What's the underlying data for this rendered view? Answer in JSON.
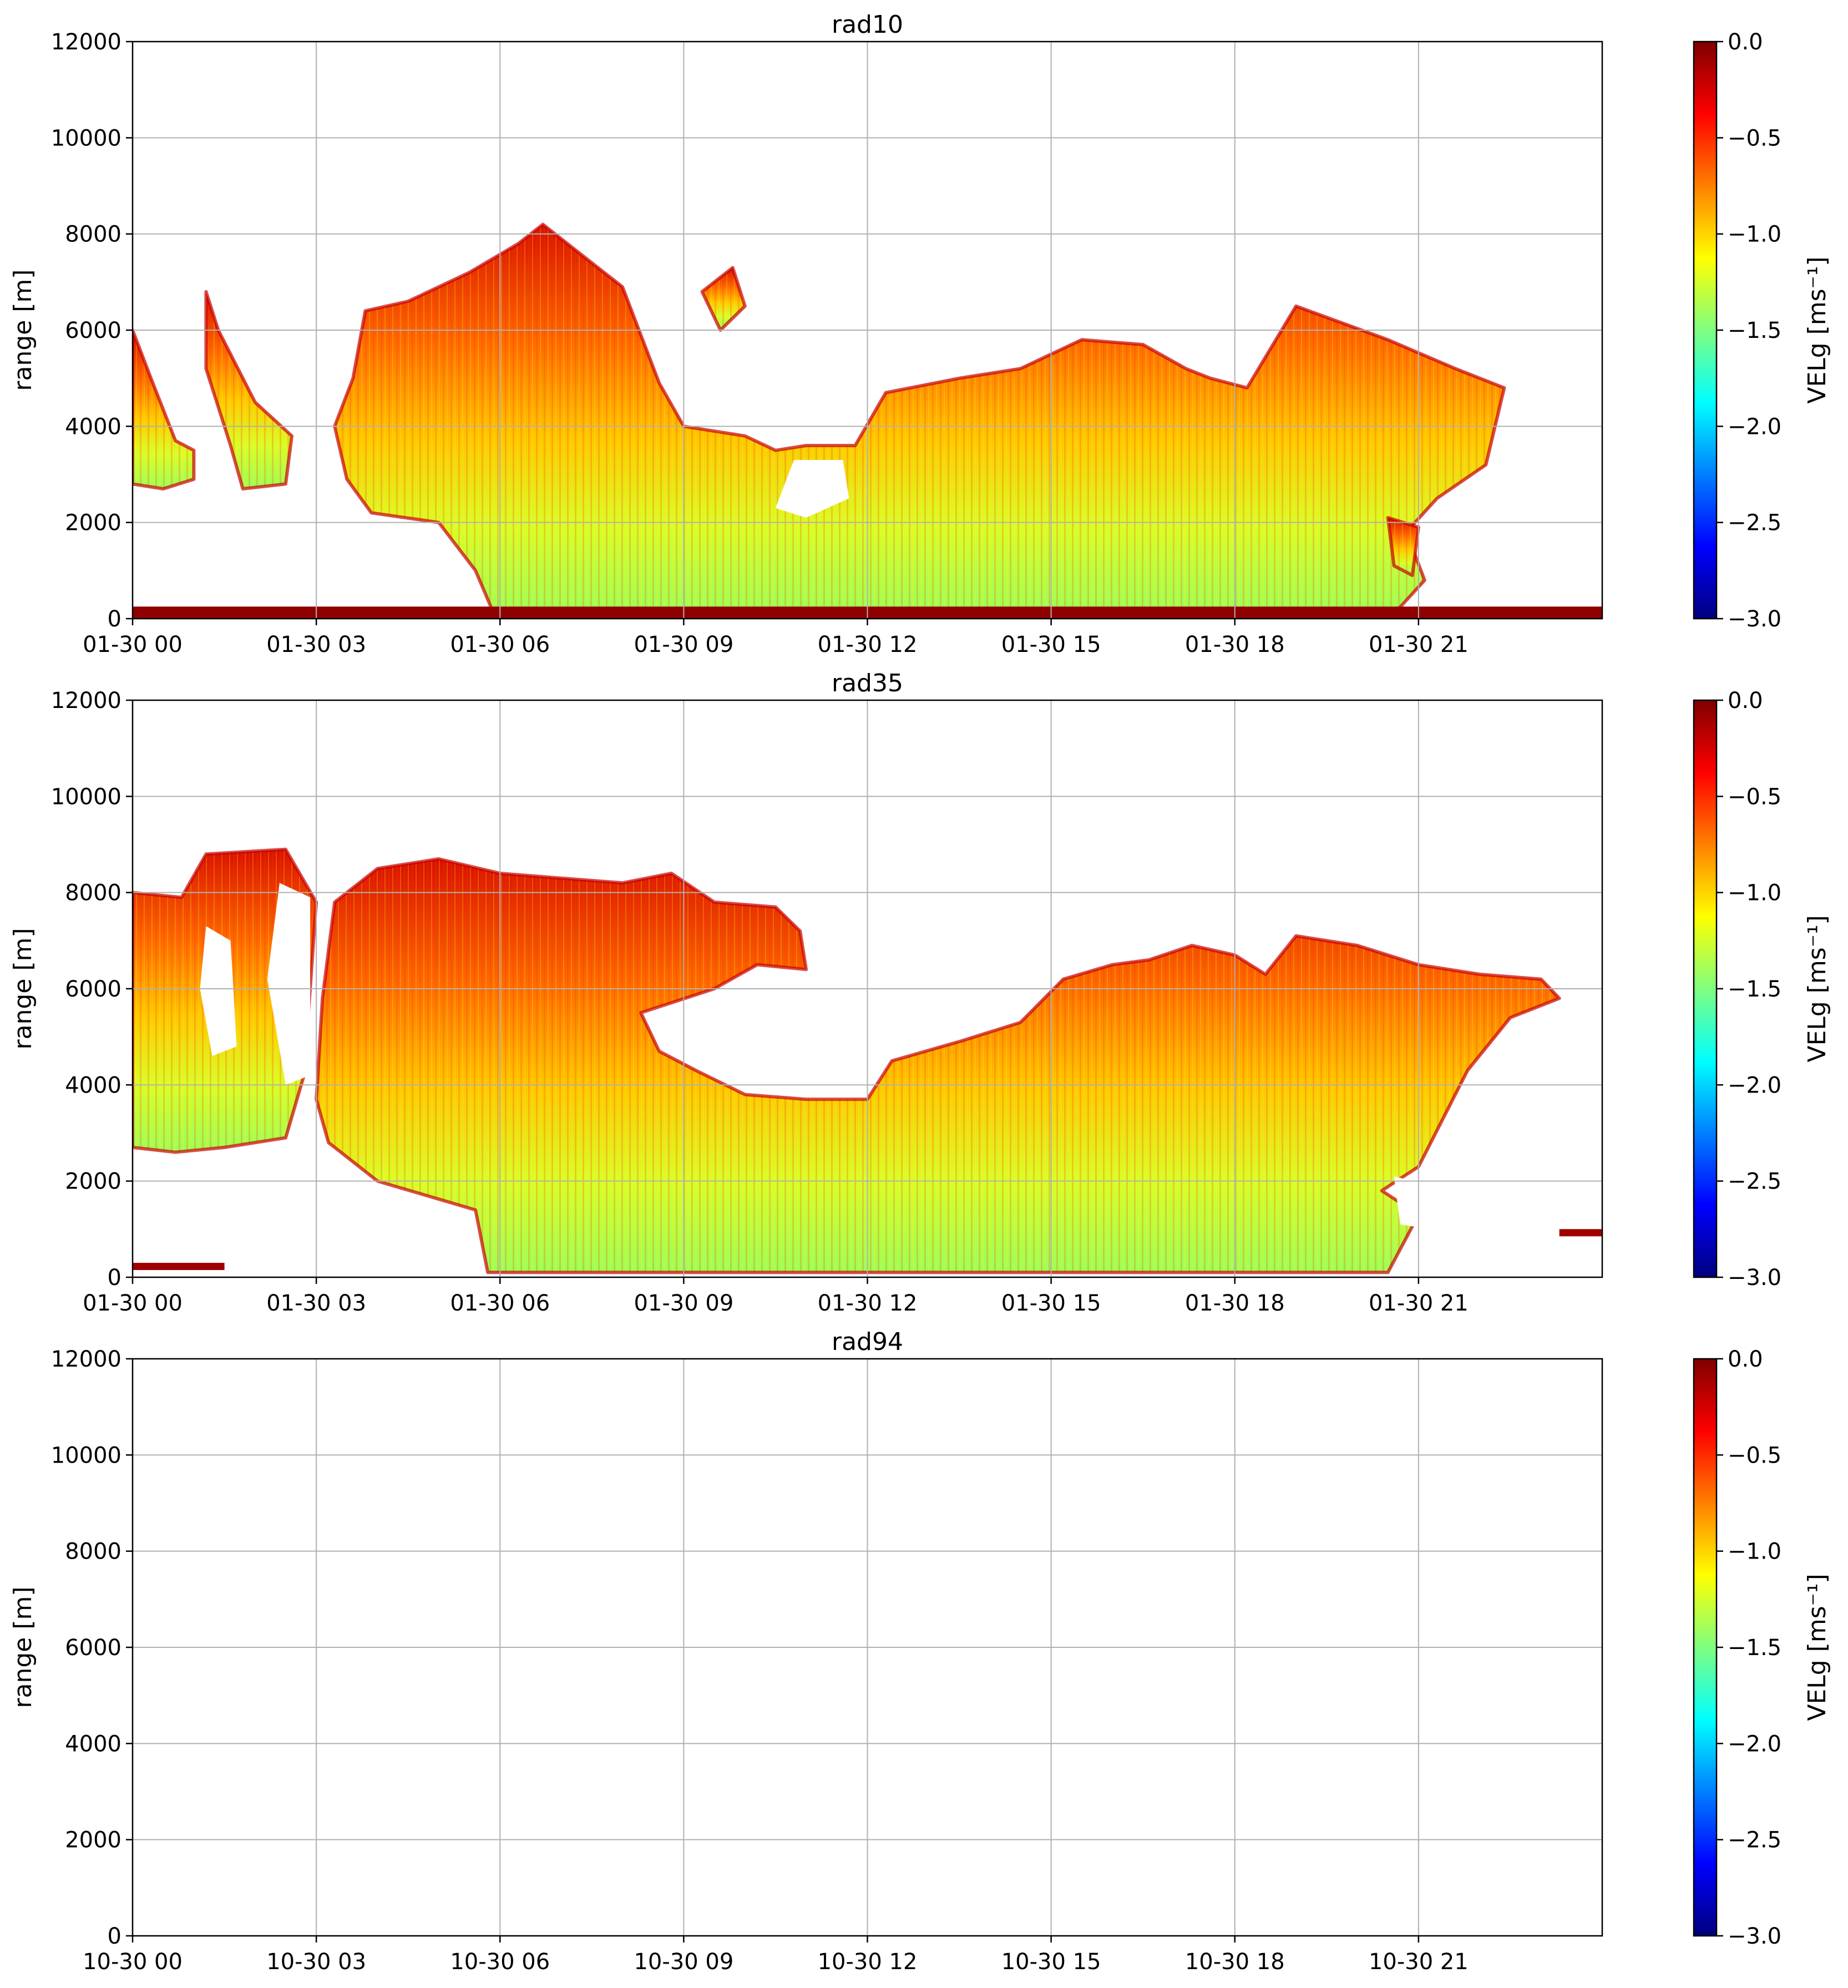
{
  "chart_data": [
    {
      "type": "heatmap",
      "title": "rad10",
      "xlabel": "",
      "ylabel": "range [m]",
      "ylim": [
        0,
        12000
      ],
      "yticks": [
        0,
        2000,
        4000,
        6000,
        8000,
        10000,
        12000
      ],
      "xlim_hours": [
        0,
        24
      ],
      "xticks": [
        {
          "hour": 0,
          "label": "01-30 00"
        },
        {
          "hour": 3,
          "label": "01-30 03"
        },
        {
          "hour": 6,
          "label": "01-30 06"
        },
        {
          "hour": 9,
          "label": "01-30 09"
        },
        {
          "hour": 12,
          "label": "01-30 12"
        },
        {
          "hour": 15,
          "label": "01-30 15"
        },
        {
          "hour": 18,
          "label": "01-30 18"
        },
        {
          "hour": 21,
          "label": "01-30 21"
        }
      ],
      "grid": true,
      "colorbar": {
        "label": "VELg [ms⁻¹]",
        "min": -3.0,
        "max": 0.0,
        "ticks": [
          "0.0",
          "−0.5",
          "−1.0",
          "−1.5",
          "−2.0",
          "−2.5",
          "−3.0"
        ],
        "colormap": "jet"
      },
      "echo_regions": [
        {
          "name": "main-cloud",
          "poly": [
            [
              3.6,
              5000
            ],
            [
              3.8,
              6400
            ],
            [
              4.5,
              6600
            ],
            [
              5.5,
              7200
            ],
            [
              6.3,
              7800
            ],
            [
              6.7,
              8200
            ],
            [
              7.5,
              7400
            ],
            [
              8.0,
              6900
            ],
            [
              8.6,
              4900
            ],
            [
              9.0,
              4000
            ],
            [
              10.0,
              3800
            ],
            [
              10.5,
              3500
            ],
            [
              11.0,
              3600
            ],
            [
              11.8,
              3600
            ],
            [
              12.3,
              4700
            ],
            [
              13.5,
              5000
            ],
            [
              14.5,
              5200
            ],
            [
              15.5,
              5800
            ],
            [
              16.5,
              5700
            ],
            [
              17.2,
              5200
            ],
            [
              17.6,
              5000
            ],
            [
              18.2,
              4800
            ],
            [
              19.0,
              6500
            ],
            [
              20.5,
              5800
            ],
            [
              21.6,
              5200
            ],
            [
              22.4,
              4800
            ],
            [
              22.1,
              3200
            ],
            [
              21.3,
              2500
            ],
            [
              20.8,
              1800
            ],
            [
              21.1,
              800
            ],
            [
              20.6,
              100
            ],
            [
              5.9,
              100
            ],
            [
              5.6,
              1000
            ],
            [
              5.0,
              2000
            ],
            [
              3.9,
              2200
            ],
            [
              3.5,
              2900
            ],
            [
              3.3,
              4000
            ]
          ],
          "velocity_ms": -0.8
        },
        {
          "name": "early-cloud",
          "poly": [
            [
              0.0,
              6000
            ],
            [
              0.3,
              5000
            ],
            [
              0.7,
              3700
            ],
            [
              1.0,
              3500
            ],
            [
              1.0,
              2900
            ],
            [
              0.5,
              2700
            ],
            [
              0.0,
              2800
            ]
          ],
          "velocity_ms": -0.3
        },
        {
          "name": "streak-cloud",
          "poly": [
            [
              1.2,
              6800
            ],
            [
              1.4,
              6000
            ],
            [
              2.0,
              4500
            ],
            [
              2.6,
              3800
            ],
            [
              2.5,
              2800
            ],
            [
              1.8,
              2700
            ],
            [
              1.6,
              3600
            ],
            [
              1.2,
              5200
            ]
          ],
          "velocity_ms": -0.6
        },
        {
          "name": "patch-cloud",
          "poly": [
            [
              9.3,
              6800
            ],
            [
              9.8,
              7300
            ],
            [
              10.0,
              6500
            ],
            [
              9.6,
              6000
            ]
          ],
          "velocity_ms": -0.4
        },
        {
          "name": "small-cell",
          "poly": [
            [
              20.5,
              2100
            ],
            [
              21.0,
              1900
            ],
            [
              20.9,
              900
            ],
            [
              20.6,
              1100
            ]
          ],
          "velocity_ms": -0.5
        },
        {
          "name": "surface-clutter",
          "poly": [
            [
              0.0,
              250
            ],
            [
              24.0,
              250
            ],
            [
              24.0,
              0
            ],
            [
              0.0,
              0
            ]
          ],
          "velocity_ms": -0.05
        }
      ],
      "clear_regions": [
        {
          "name": "gap",
          "poly": [
            [
              10.8,
              3300
            ],
            [
              11.6,
              3300
            ],
            [
              11.7,
              2500
            ],
            [
              11.0,
              2100
            ],
            [
              10.5,
              2300
            ]
          ]
        }
      ]
    },
    {
      "type": "heatmap",
      "title": "rad35",
      "xlabel": "",
      "ylabel": "range [m]",
      "ylim": [
        0,
        12000
      ],
      "yticks": [
        0,
        2000,
        4000,
        6000,
        8000,
        10000,
        12000
      ],
      "xlim_hours": [
        0,
        24
      ],
      "xticks": [
        {
          "hour": 0,
          "label": "01-30 00"
        },
        {
          "hour": 3,
          "label": "01-30 03"
        },
        {
          "hour": 6,
          "label": "01-30 06"
        },
        {
          "hour": 9,
          "label": "01-30 09"
        },
        {
          "hour": 12,
          "label": "01-30 12"
        },
        {
          "hour": 15,
          "label": "01-30 15"
        },
        {
          "hour": 18,
          "label": "01-30 18"
        },
        {
          "hour": 21,
          "label": "01-30 21"
        }
      ],
      "grid": true,
      "colorbar": {
        "label": "VELg [ms⁻¹]",
        "min": -3.0,
        "max": 0.0,
        "ticks": [
          "0.0",
          "−0.5",
          "−1.0",
          "−1.5",
          "−2.0",
          "−2.5",
          "−3.0"
        ],
        "colormap": "jet"
      },
      "echo_regions": [
        {
          "name": "main-cloud",
          "poly": [
            [
              3.3,
              7800
            ],
            [
              4.0,
              8500
            ],
            [
              5.0,
              8700
            ],
            [
              6.0,
              8400
            ],
            [
              7.0,
              8300
            ],
            [
              8.0,
              8200
            ],
            [
              8.8,
              8400
            ],
            [
              9.5,
              7800
            ],
            [
              10.5,
              7700
            ],
            [
              10.9,
              7200
            ],
            [
              11.0,
              6400
            ],
            [
              10.2,
              6500
            ],
            [
              9.5,
              6000
            ],
            [
              8.3,
              5500
            ],
            [
              8.6,
              4700
            ],
            [
              9.2,
              4300
            ],
            [
              10.0,
              3800
            ],
            [
              11.0,
              3700
            ],
            [
              12.0,
              3700
            ],
            [
              12.4,
              4500
            ],
            [
              13.5,
              4900
            ],
            [
              14.5,
              5300
            ],
            [
              15.2,
              6200
            ],
            [
              16.0,
              6500
            ],
            [
              16.6,
              6600
            ],
            [
              17.3,
              6900
            ],
            [
              18.0,
              6700
            ],
            [
              18.5,
              6300
            ],
            [
              19.0,
              7100
            ],
            [
              20.0,
              6900
            ],
            [
              21.0,
              6500
            ],
            [
              22.0,
              6300
            ],
            [
              23.0,
              6200
            ],
            [
              23.3,
              5800
            ],
            [
              22.5,
              5400
            ],
            [
              21.8,
              4300
            ],
            [
              21.0,
              2300
            ],
            [
              20.4,
              1800
            ],
            [
              21.0,
              1300
            ],
            [
              20.5,
              100
            ],
            [
              5.8,
              100
            ],
            [
              5.6,
              1400
            ],
            [
              4.0,
              2000
            ],
            [
              3.2,
              2800
            ],
            [
              3.0,
              3700
            ],
            [
              3.1,
              5800
            ]
          ],
          "velocity_ms": -0.8
        },
        {
          "name": "left-cloud",
          "poly": [
            [
              0.0,
              8000
            ],
            [
              0.8,
              7900
            ],
            [
              1.2,
              8800
            ],
            [
              2.5,
              8900
            ],
            [
              3.0,
              7800
            ],
            [
              2.8,
              4200
            ],
            [
              2.5,
              2900
            ],
            [
              1.5,
              2700
            ],
            [
              0.7,
              2600
            ],
            [
              0.0,
              2700
            ]
          ],
          "velocity_ms": -0.5
        },
        {
          "name": "surface-clutter",
          "poly": [
            [
              0.0,
              300
            ],
            [
              1.5,
              300
            ],
            [
              1.5,
              150
            ],
            [
              0.0,
              150
            ]
          ],
          "velocity_ms": -0.1
        },
        {
          "name": "right-speck",
          "poly": [
            [
              23.3,
              1000
            ],
            [
              24.0,
              1000
            ],
            [
              24.0,
              850
            ],
            [
              23.3,
              850
            ]
          ],
          "velocity_ms": -0.1
        }
      ],
      "clear_regions": [
        {
          "name": "hole-a",
          "poly": [
            [
              1.2,
              7300
            ],
            [
              1.6,
              7000
            ],
            [
              1.7,
              4800
            ],
            [
              1.3,
              4600
            ],
            [
              1.1,
              6000
            ]
          ]
        },
        {
          "name": "hole-b",
          "poly": [
            [
              2.4,
              8200
            ],
            [
              2.9,
              7900
            ],
            [
              2.9,
              4200
            ],
            [
              2.5,
              4000
            ],
            [
              2.2,
              6200
            ]
          ]
        },
        {
          "name": "hole-c",
          "poly": [
            [
              20.6,
              2100
            ],
            [
              21.2,
              1900
            ],
            [
              21.2,
              1000
            ],
            [
              20.7,
              1100
            ]
          ]
        }
      ]
    },
    {
      "type": "heatmap",
      "title": "rad94",
      "xlabel": "",
      "ylabel": "range [m]",
      "ylim": [
        0,
        12000
      ],
      "yticks": [
        0,
        2000,
        4000,
        6000,
        8000,
        10000,
        12000
      ],
      "xlim_hours": [
        0,
        24
      ],
      "xticks": [
        {
          "hour": 0,
          "label": "10-30 00"
        },
        {
          "hour": 3,
          "label": "10-30 03"
        },
        {
          "hour": 6,
          "label": "10-30 06"
        },
        {
          "hour": 9,
          "label": "10-30 09"
        },
        {
          "hour": 12,
          "label": "10-30 12"
        },
        {
          "hour": 15,
          "label": "10-30 15"
        },
        {
          "hour": 18,
          "label": "10-30 18"
        },
        {
          "hour": 21,
          "label": "10-30 21"
        }
      ],
      "grid": true,
      "colorbar": {
        "label": "VELg [ms⁻¹]",
        "min": -3.0,
        "max": 0.0,
        "ticks": [
          "0.0",
          "−0.5",
          "−1.0",
          "−1.5",
          "−2.0",
          "−2.5",
          "−3.0"
        ],
        "colormap": "jet"
      },
      "echo_regions": [],
      "clear_regions": []
    }
  ]
}
